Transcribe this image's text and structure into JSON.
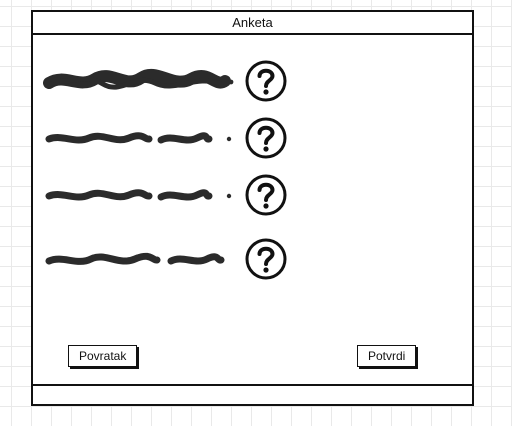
{
  "window": {
    "title": "Anketa"
  },
  "buttons": {
    "back_label": "Povratak",
    "confirm_label": "Potvrdi"
  },
  "questions": [
    {
      "text_icon": "scribble-placeholder-text",
      "help_icon": "question-mark-circle-icon"
    },
    {
      "text_icon": "scribble-placeholder-text",
      "help_icon": "question-mark-circle-icon"
    },
    {
      "text_icon": "scribble-placeholder-text",
      "help_icon": "question-mark-circle-icon"
    },
    {
      "text_icon": "scribble-placeholder-text",
      "help_icon": "question-mark-circle-icon"
    }
  ],
  "colors": {
    "ink": "#111111",
    "scribble": "#2b2b2b",
    "grid": "#e9e9e9",
    "background": "#ffffff"
  }
}
